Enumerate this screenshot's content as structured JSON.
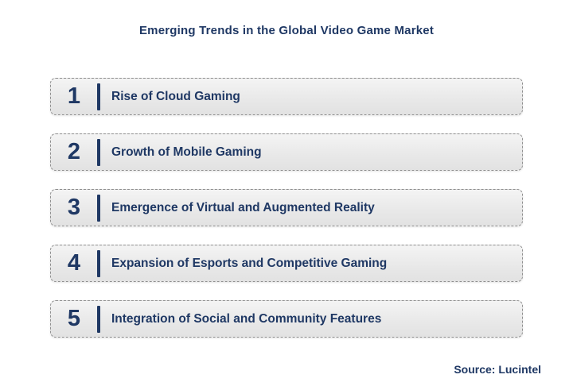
{
  "title": "Emerging Trends in the Global Video Game Market",
  "source": "Source: Lucintel",
  "colors": {
    "navy": "#1F3864",
    "row_background": "#EDEDED",
    "row_border": "#8F8F8F"
  },
  "items": [
    {
      "number": "1",
      "label": "Rise of Cloud Gaming"
    },
    {
      "number": "2",
      "label": "Growth of Mobile Gaming"
    },
    {
      "number": "3",
      "label": "Emergence of Virtual and Augmented Reality"
    },
    {
      "number": "4",
      "label": "Expansion of Esports and Competitive Gaming"
    },
    {
      "number": "5",
      "label": "Integration of Social and Community Features"
    }
  ]
}
